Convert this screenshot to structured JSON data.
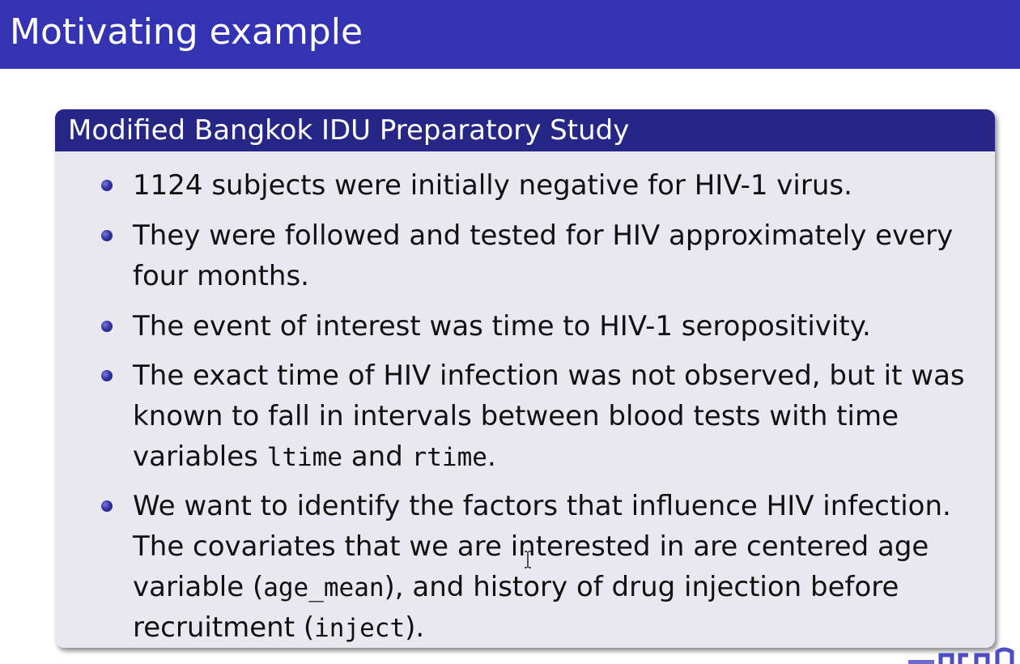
{
  "slide": {
    "title": "Motivating example"
  },
  "block": {
    "title": "Modified Bangkok IDU Preparatory Study",
    "bullets": [
      {
        "lines": [
          "1124 subjects were initially negative for HIV-1 virus."
        ]
      },
      {
        "lines": [
          "They were followed and tested for HIV approximately every",
          "four months."
        ]
      },
      {
        "lines": [
          "The event of interest was time to HIV-1 seropositivity."
        ]
      },
      {
        "line1": "The exact time of HIV infection was not observed, but it was",
        "line2": "known to fall in intervals between blood tests with time",
        "line3_a": "variables ",
        "line3_code1": "ltime",
        "line3_b": " and ",
        "line3_code2": "rtime",
        "line3_c": "."
      },
      {
        "line1": "We want to identify the factors that influence HIV infection.",
        "line2": "The covariates that we are interested in are centered age",
        "line3_a": "variable (",
        "line3_code": "age_mean",
        "line3_b": "), and history of drug injection before",
        "line4_a": "recruitment (",
        "line4_code": "inject",
        "line4_b": ")."
      }
    ]
  },
  "colors": {
    "title_bar": "#3333b3",
    "block_header": "#262686",
    "block_body": "#e9e8f1",
    "bullet": "#3535a8"
  }
}
